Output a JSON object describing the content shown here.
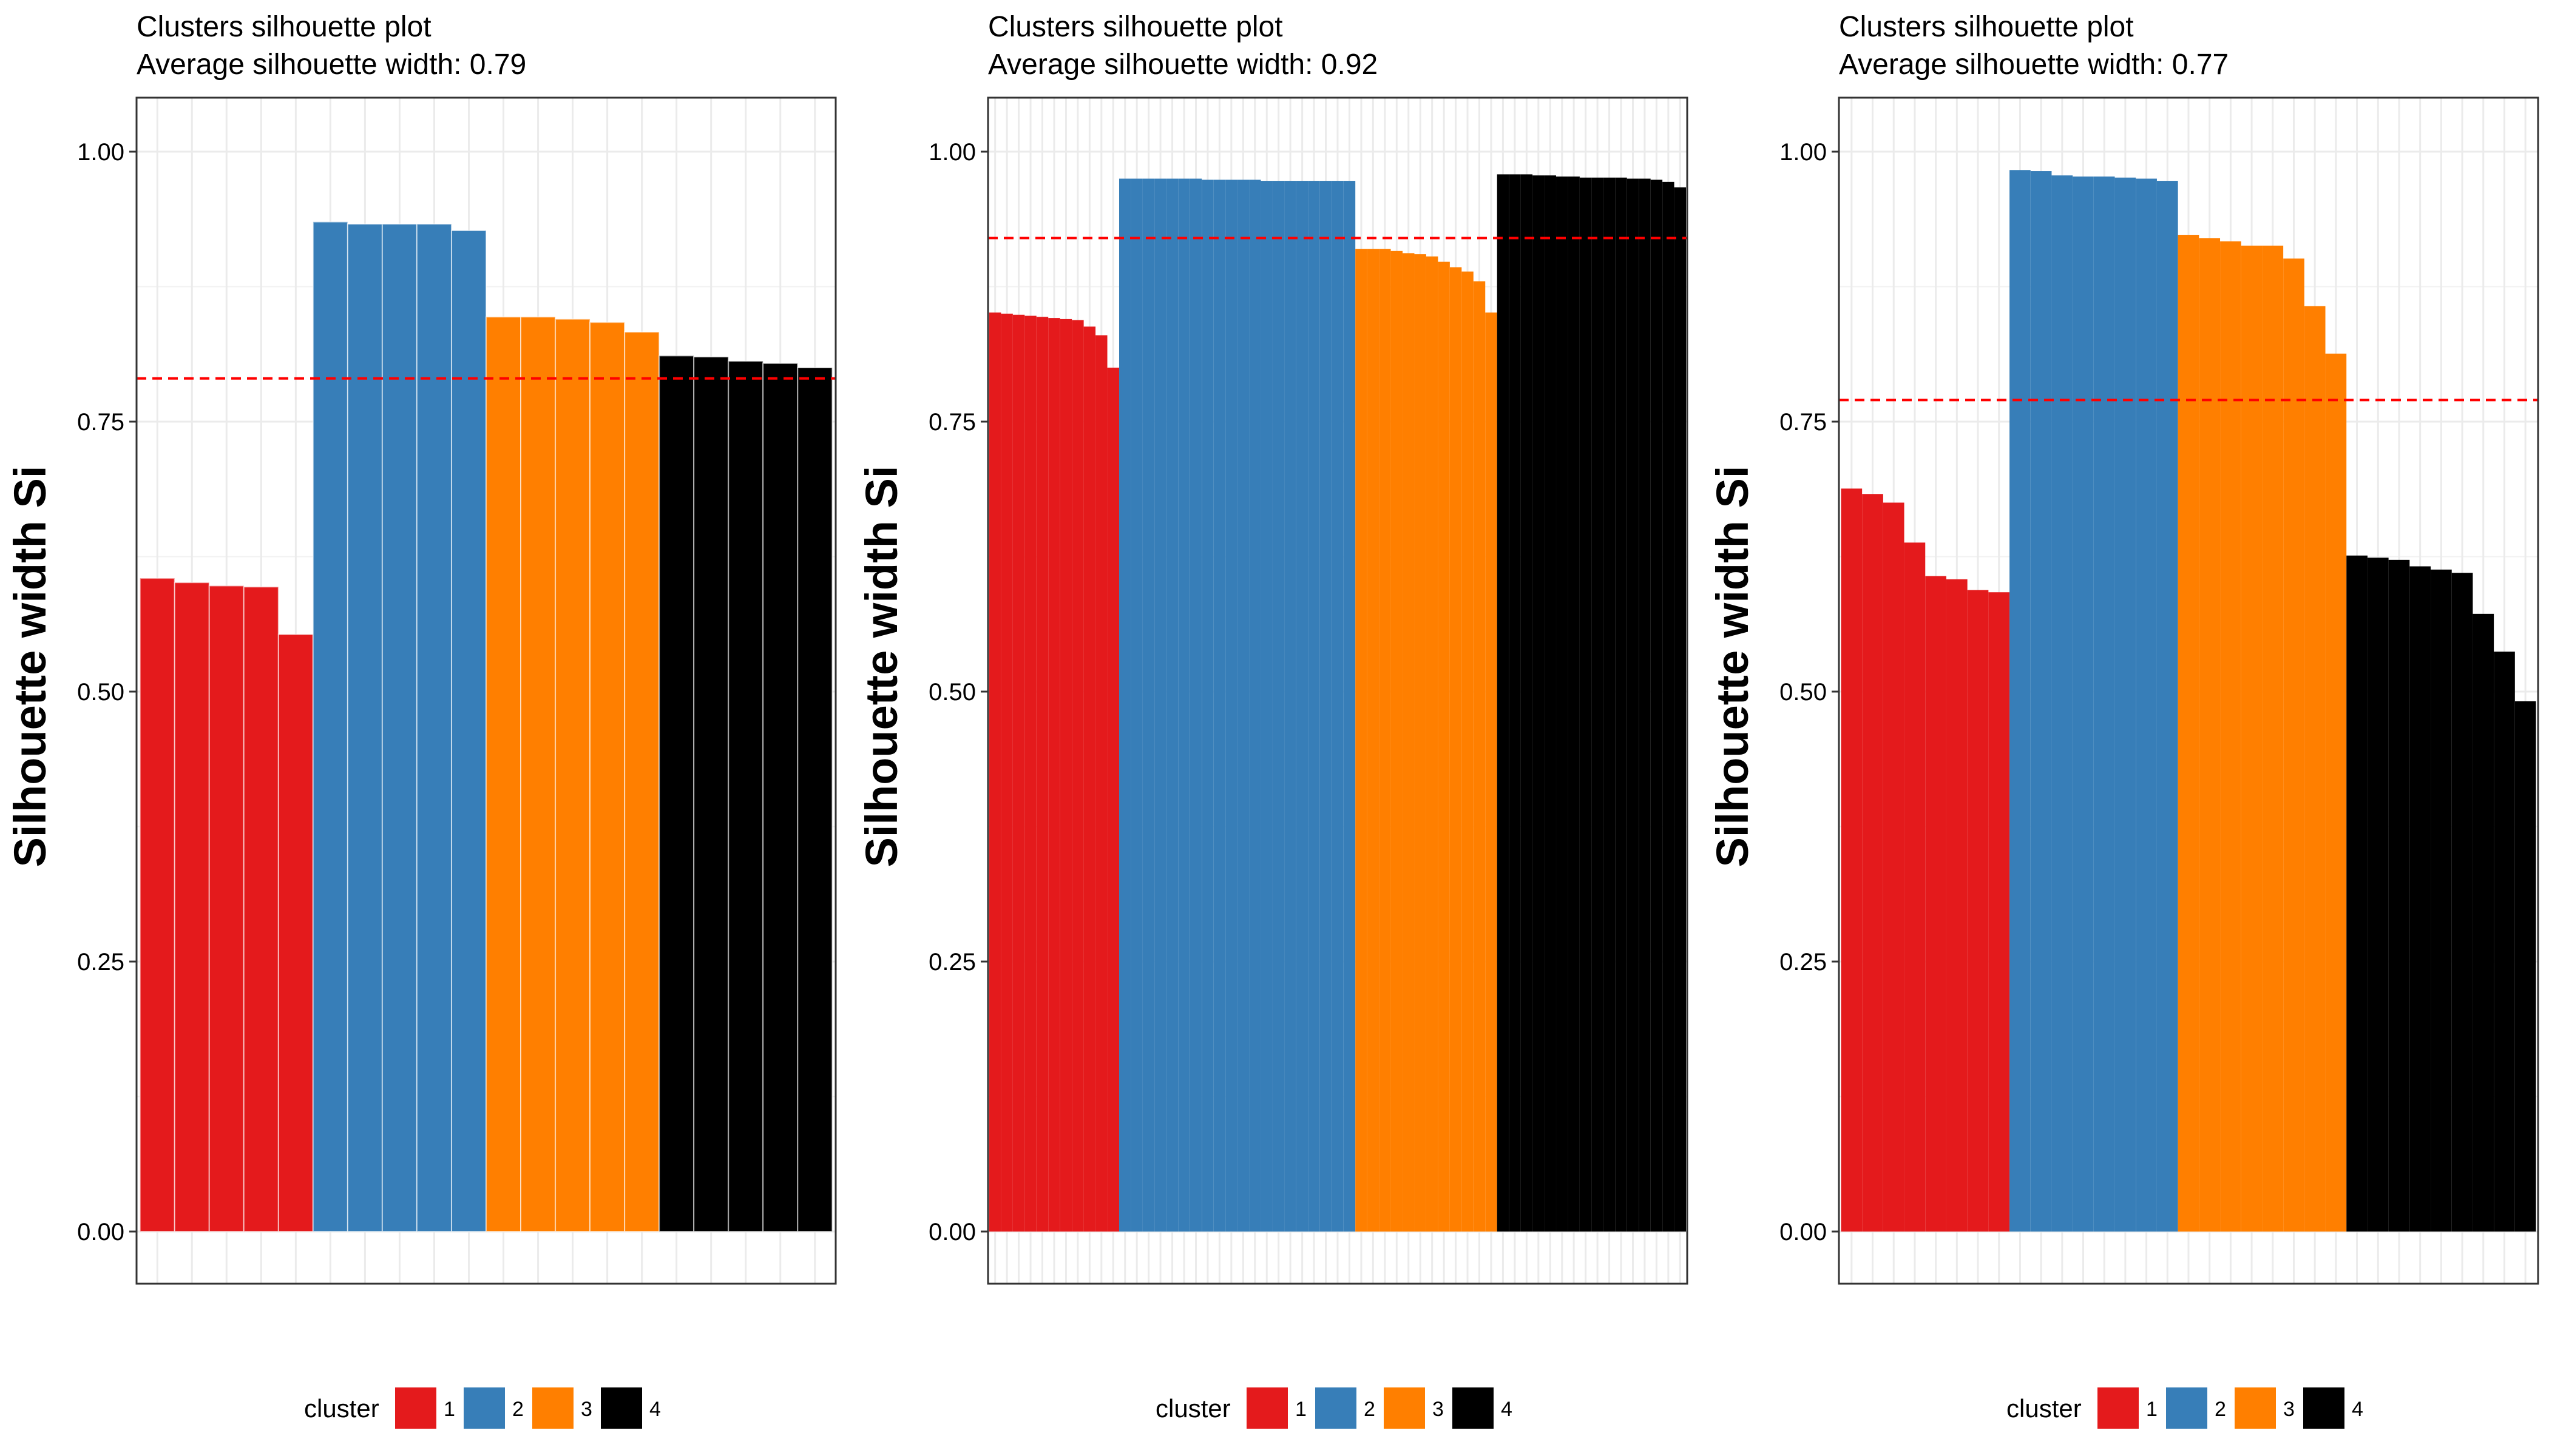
{
  "legend": {
    "title": "cluster",
    "items": [
      {
        "label": "1",
        "color": "#E41A1C"
      },
      {
        "label": "2",
        "color": "#377EB8"
      },
      {
        "label": "3",
        "color": "#FF7F00"
      },
      {
        "label": "4",
        "color": "#000000"
      }
    ]
  },
  "chart_data": [
    {
      "type": "bar",
      "title": "Clusters silhouette plot",
      "subtitle": " Average silhouette width: 0.79",
      "xlabel": "",
      "ylabel": "Silhouette width Si",
      "ylim": [
        0,
        1.05
      ],
      "yticks": [
        "0.00",
        "0.25",
        "0.50",
        "0.75",
        "1.00"
      ],
      "average": 0.79,
      "grid": true,
      "legend_position": "bottom",
      "series": [
        {
          "name": "1",
          "values": [
            0.605,
            0.601,
            0.598,
            0.597,
            0.553
          ]
        },
        {
          "name": "2",
          "values": [
            0.935,
            0.933,
            0.933,
            0.933,
            0.927
          ]
        },
        {
          "name": "3",
          "values": [
            0.847,
            0.847,
            0.845,
            0.842,
            0.833
          ]
        },
        {
          "name": "4",
          "values": [
            0.811,
            0.81,
            0.806,
            0.804,
            0.8
          ]
        }
      ]
    },
    {
      "type": "bar",
      "title": "Clusters silhouette plot",
      "subtitle": " Average silhouette width: 0.92",
      "xlabel": "",
      "ylabel": "Silhouette width Si",
      "ylim": [
        0,
        1.05
      ],
      "yticks": [
        "0.00",
        "0.25",
        "0.50",
        "0.75",
        "1.00"
      ],
      "average": 0.92,
      "grid": true,
      "legend_position": "bottom",
      "series": [
        {
          "name": "1",
          "values": [
            0.851,
            0.85,
            0.849,
            0.848,
            0.847,
            0.846,
            0.845,
            0.844,
            0.838,
            0.83,
            0.8
          ]
        },
        {
          "name": "2",
          "values": [
            0.975,
            0.975,
            0.975,
            0.975,
            0.975,
            0.975,
            0.975,
            0.974,
            0.974,
            0.974,
            0.974,
            0.974,
            0.973,
            0.973,
            0.973,
            0.973,
            0.973,
            0.973,
            0.973,
            0.973
          ]
        },
        {
          "name": "3",
          "values": [
            0.91,
            0.91,
            0.91,
            0.908,
            0.906,
            0.905,
            0.903,
            0.898,
            0.893,
            0.889,
            0.88,
            0.851
          ]
        },
        {
          "name": "4",
          "values": [
            0.979,
            0.979,
            0.979,
            0.978,
            0.978,
            0.977,
            0.977,
            0.976,
            0.976,
            0.976,
            0.976,
            0.975,
            0.975,
            0.974,
            0.972,
            0.967
          ]
        }
      ]
    },
    {
      "type": "bar",
      "title": "Clusters silhouette plot",
      "subtitle": " Average silhouette width: 0.77",
      "xlabel": "",
      "ylabel": "Silhouette width Si",
      "ylim": [
        0,
        1.05
      ],
      "yticks": [
        "0.00",
        "0.25",
        "0.50",
        "0.75",
        "1.00"
      ],
      "average": 0.77,
      "grid": true,
      "legend_position": "bottom",
      "series": [
        {
          "name": "1",
          "values": [
            0.688,
            0.683,
            0.675,
            0.638,
            0.607,
            0.604,
            0.594,
            0.592
          ]
        },
        {
          "name": "2",
          "values": [
            0.983,
            0.982,
            0.978,
            0.977,
            0.977,
            0.976,
            0.975,
            0.973
          ]
        },
        {
          "name": "3",
          "values": [
            0.923,
            0.92,
            0.917,
            0.913,
            0.913,
            0.901,
            0.857,
            0.813
          ]
        },
        {
          "name": "4",
          "values": [
            0.626,
            0.624,
            0.622,
            0.616,
            0.613,
            0.61,
            0.572,
            0.537,
            0.491
          ]
        }
      ]
    }
  ]
}
